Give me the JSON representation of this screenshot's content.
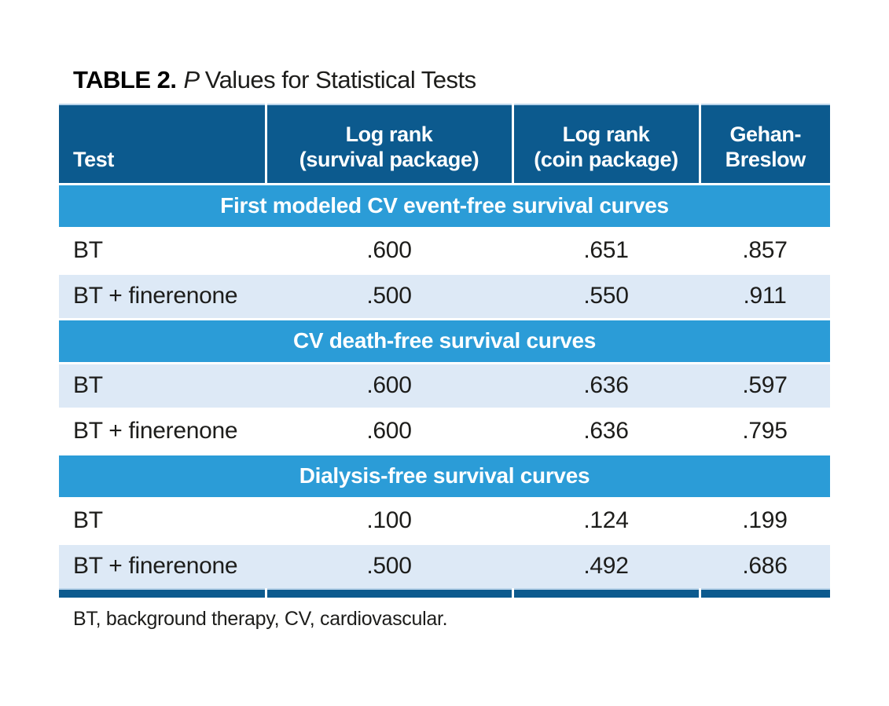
{
  "title": {
    "label": "TABLE 2.",
    "italic_part": "P",
    "text": "Values for Statistical Tests"
  },
  "table": {
    "columns": [
      {
        "label": "Test",
        "sub": ""
      },
      {
        "label": "Log rank",
        "sub": "(survival package)"
      },
      {
        "label": "Log rank",
        "sub": "(coin package)"
      },
      {
        "label": "Gehan-",
        "sub": "Breslow"
      }
    ],
    "sections": [
      {
        "header": "First modeled CV event-free survival curves",
        "rows": [
          {
            "test": "BT",
            "values": [
              ".600",
              ".651",
              ".857"
            ],
            "shaded": false
          },
          {
            "test": "BT + finerenone",
            "values": [
              ".500",
              ".550",
              ".911"
            ],
            "shaded": true
          }
        ]
      },
      {
        "header": "CV death-free survival curves",
        "rows": [
          {
            "test": "BT",
            "values": [
              ".600",
              ".636",
              ".597"
            ],
            "shaded": true
          },
          {
            "test": "BT + finerenone",
            "values": [
              ".600",
              ".636",
              ".795"
            ],
            "shaded": false
          }
        ]
      },
      {
        "header": "Dialysis-free survival curves",
        "rows": [
          {
            "test": "BT",
            "values": [
              ".100",
              ".124",
              ".199"
            ],
            "shaded": false
          },
          {
            "test": "BT + finerenone",
            "values": [
              ".500",
              ".492",
              ".686"
            ],
            "shaded": true
          }
        ]
      }
    ],
    "footnote": "BT, background therapy, CV, cardiovascular."
  },
  "colors": {
    "header_bg": "#0c5a8e",
    "section_bg": "#2b9cd7",
    "shaded_row_bg": "#dde9f6",
    "header_text": "#ffffff",
    "body_text": "#1d1d1b"
  }
}
